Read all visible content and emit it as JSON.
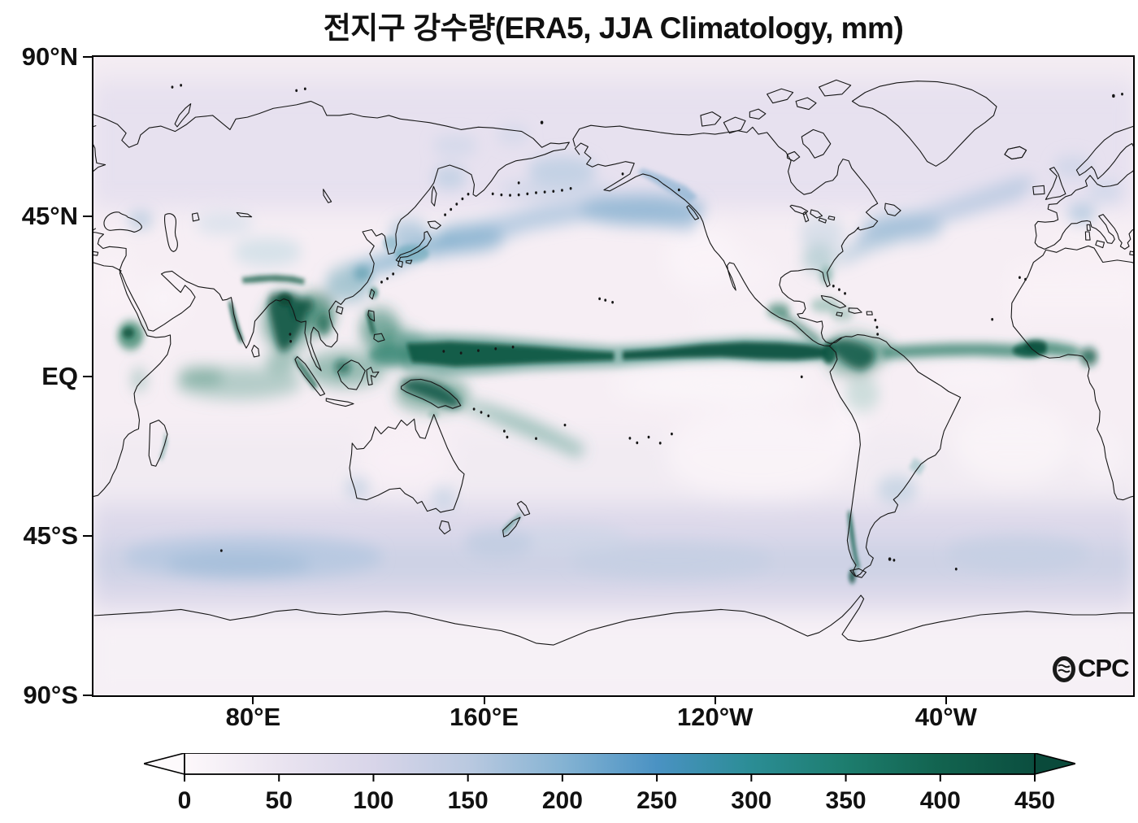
{
  "title": "전지구 강수량(ERA5, JJA Climatology, mm)",
  "watermark": {
    "full_text": "OCPC",
    "logo_letter": "O",
    "text_after_logo": "CPC"
  },
  "map": {
    "y_axis": {
      "ticks": [
        {
          "label": "90°N",
          "lat": 90
        },
        {
          "label": "45°N",
          "lat": 45
        },
        {
          "label": "EQ",
          "lat": 0
        },
        {
          "label": "45°S",
          "lat": -45
        },
        {
          "label": "90°S",
          "lat": -90
        }
      ]
    },
    "x_axis": {
      "ticks": [
        {
          "label": "80°E",
          "lon": 80
        },
        {
          "label": "160°E",
          "lon": 160
        },
        {
          "label": "120°W",
          "lon": 240
        },
        {
          "label": "40°W",
          "lon": 320
        }
      ]
    }
  },
  "colorbar": {
    "unit": "mm",
    "ticks": [
      0,
      50,
      100,
      150,
      200,
      250,
      300,
      350,
      400,
      450
    ],
    "range": [
      0,
      450
    ],
    "stops": [
      {
        "v": 0,
        "c": "#fdf8fb"
      },
      {
        "v": 50,
        "c": "#eae4f0"
      },
      {
        "v": 100,
        "c": "#d8d5e9"
      },
      {
        "v": 150,
        "c": "#bac9e0"
      },
      {
        "v": 200,
        "c": "#85b3d3"
      },
      {
        "v": 250,
        "c": "#4a92c3"
      },
      {
        "v": 300,
        "c": "#2b8d95"
      },
      {
        "v": 350,
        "c": "#1d7d6e"
      },
      {
        "v": 400,
        "c": "#12634f"
      },
      {
        "v": 450,
        "c": "#0b4e3f"
      }
    ],
    "extend_left_color": "#fdfafc",
    "extend_right_color": "#0a4a3b"
  },
  "chart_data": {
    "type": "heatmap",
    "variable": "precipitation",
    "dataset": "ERA5",
    "season": "JJA Climatology",
    "unit": "mm",
    "colorbar_ticks": [
      0,
      50,
      100,
      150,
      200,
      250,
      300,
      350,
      400,
      450
    ],
    "scale_range": [
      0,
      450
    ],
    "extend": "both",
    "lat_ticks": [
      "90°N",
      "45°N",
      "EQ",
      "45°S",
      "90°S"
    ],
    "lon_ticks": [
      "80°E",
      "160°E",
      "120°W",
      "40°W"
    ]
  }
}
